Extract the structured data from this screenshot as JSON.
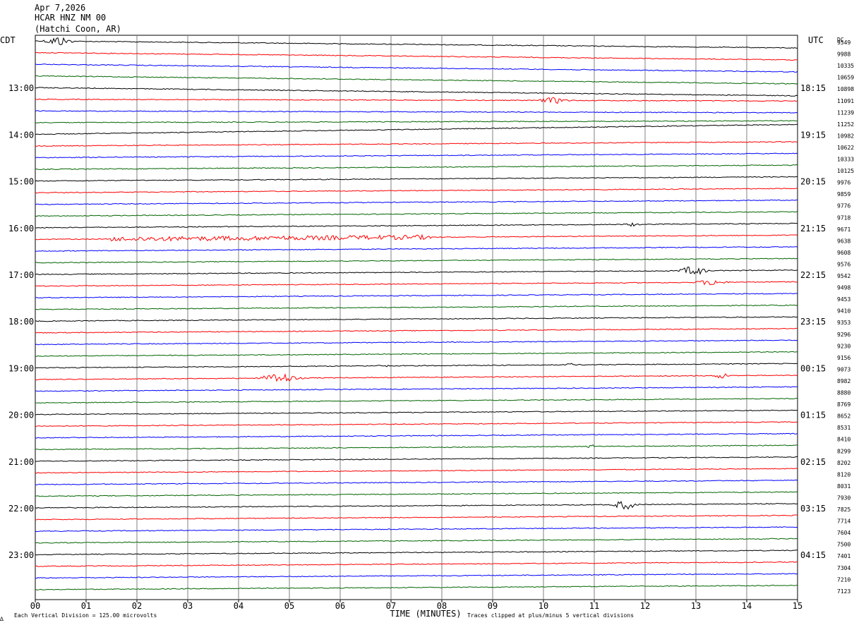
{
  "header": {
    "date": "Apr 7,2026",
    "station": "HCAR HNZ NM 00",
    "location": "(Hatchi Coon, AR)"
  },
  "left_tz": "CDT",
  "right_tz": "UTC",
  "dc_label": "DC",
  "left_hours": [
    "13:00",
    "14:00",
    "15:00",
    "16:00",
    "17:00",
    "18:00",
    "19:00",
    "20:00",
    "21:00",
    "22:00",
    "23:00"
  ],
  "right_hours": [
    "18:15",
    "19:15",
    "20:15",
    "21:15",
    "22:15",
    "23:15",
    "00:15",
    "01:15",
    "02:15",
    "03:15",
    "04:15"
  ],
  "dc_values": [
    "9549",
    "9988",
    "10335",
    "10659",
    "10898",
    "11091",
    "11239",
    "11252",
    "10982",
    "10622",
    "10333",
    "10125",
    "9976",
    "9859",
    "9776",
    "9718",
    "9671",
    "9638",
    "9608",
    "9576",
    "9542",
    "9498",
    "9453",
    "9410",
    "9353",
    "9296",
    "9230",
    "9156",
    "9073",
    "8982",
    "8880",
    "8769",
    "8652",
    "8531",
    "8410",
    "8299",
    "8202",
    "8120",
    "8031",
    "7930",
    "7825",
    "7714",
    "7604",
    "7500",
    "7401",
    "7304",
    "7210",
    "7123"
  ],
  "x_ticks": [
    "00",
    "01",
    "02",
    "03",
    "04",
    "05",
    "06",
    "07",
    "08",
    "09",
    "10",
    "11",
    "12",
    "13",
    "14",
    "15"
  ],
  "x_label": "TIME (MINUTES)",
  "footer_left": "Each Vertical Division =  125.00 microvolts",
  "footer_right": "Traces clipped at plus/minus 5 vertical divisions",
  "footer_mark": "∆",
  "colors": {
    "black": "#000000",
    "red": "#ff0000",
    "blue": "#0000ff",
    "green": "#006400",
    "grid": "#808080"
  },
  "chart_data": {
    "type": "line",
    "title": "HCAR HNZ NM 00",
    "xlabel": "TIME (MINUTES)",
    "xlim": [
      0,
      15
    ],
    "trace_minutes": 15,
    "trace_count": 48,
    "color_cycle": [
      "black",
      "red",
      "blue",
      "green"
    ],
    "scale": "125.00 microvolts per vertical division",
    "events": [
      {
        "trace": 0,
        "start_min": 0.1,
        "end_min": 0.8,
        "amplitude": "large",
        "color": "black"
      },
      {
        "trace": 5,
        "start_min": 9.8,
        "end_min": 10.6,
        "amplitude": "medium",
        "color": "red"
      },
      {
        "trace": 16,
        "start_min": 11.5,
        "end_min": 12.0,
        "amplitude": "small",
        "color": "black"
      },
      {
        "trace": 17,
        "start_min": 1.5,
        "end_min": 7.8,
        "amplitude": "noisy",
        "color": "red"
      },
      {
        "trace": 20,
        "start_min": 12.6,
        "end_min": 13.3,
        "amplitude": "large",
        "color": "black"
      },
      {
        "trace": 21,
        "start_min": 12.9,
        "end_min": 13.7,
        "amplitude": "medium",
        "color": "red"
      },
      {
        "trace": 28,
        "start_min": 6.7,
        "end_min": 7.0,
        "amplitude": "small",
        "color": "black"
      },
      {
        "trace": 28,
        "start_min": 10.4,
        "end_min": 10.7,
        "amplitude": "small",
        "color": "black"
      },
      {
        "trace": 29,
        "start_min": 4.3,
        "end_min": 5.3,
        "amplitude": "large",
        "color": "red"
      },
      {
        "trace": 29,
        "start_min": 13.3,
        "end_min": 13.7,
        "amplitude": "medium",
        "color": "red"
      },
      {
        "trace": 35,
        "start_min": 10.8,
        "end_min": 11.1,
        "amplitude": "small",
        "color": "green"
      },
      {
        "trace": 40,
        "start_min": 11.3,
        "end_min": 11.9,
        "amplitude": "large",
        "color": "black"
      }
    ]
  }
}
